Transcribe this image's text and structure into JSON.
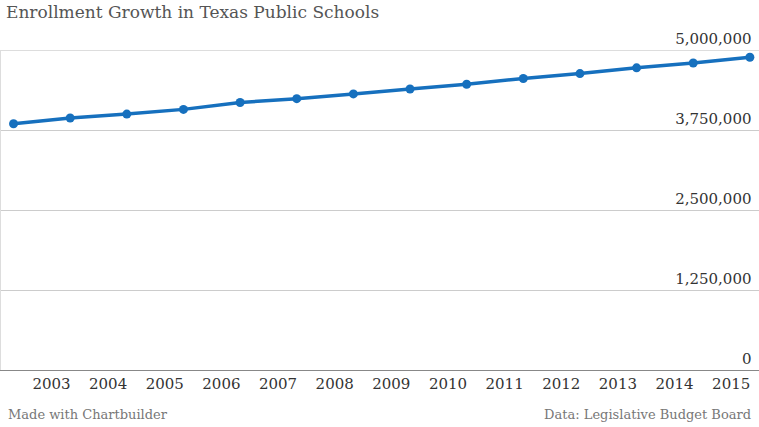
{
  "chart_data": {
    "type": "line",
    "title": "Enrollment Growth in Texas Public Schools",
    "credit": "Made with Chartbuilder",
    "source": "Data: Legislative Budget Board",
    "x": [
      2002.33,
      2003.33,
      2004.33,
      2005.33,
      2006.33,
      2007.33,
      2008.33,
      2009.33,
      2010.33,
      2011.33,
      2012.33,
      2013.33,
      2014.33,
      2015.33
    ],
    "values": [
      3855000,
      3946000,
      4006000,
      4080000,
      4187000,
      4247000,
      4322000,
      4398000,
      4473000,
      4563000,
      4639000,
      4729000,
      4804000,
      4895000
    ],
    "color": "#1670be",
    "marker": "circle",
    "xlim": [
      2002.1,
      2015.5
    ],
    "xticks": [
      2003,
      2004,
      2005,
      2006,
      2007,
      2008,
      2009,
      2010,
      2011,
      2012,
      2013,
      2014,
      2015
    ],
    "ylim": [
      0,
      5000000
    ],
    "yticks": [
      0,
      {
        "value": 1250000,
        "label": "1,250,000"
      },
      {
        "value": 2500000,
        "label": "2,500,000"
      },
      {
        "value": 3750000,
        "label": "3,750,000"
      },
      {
        "value": 5000000,
        "label": "5,000,000"
      }
    ],
    "grid": true
  }
}
